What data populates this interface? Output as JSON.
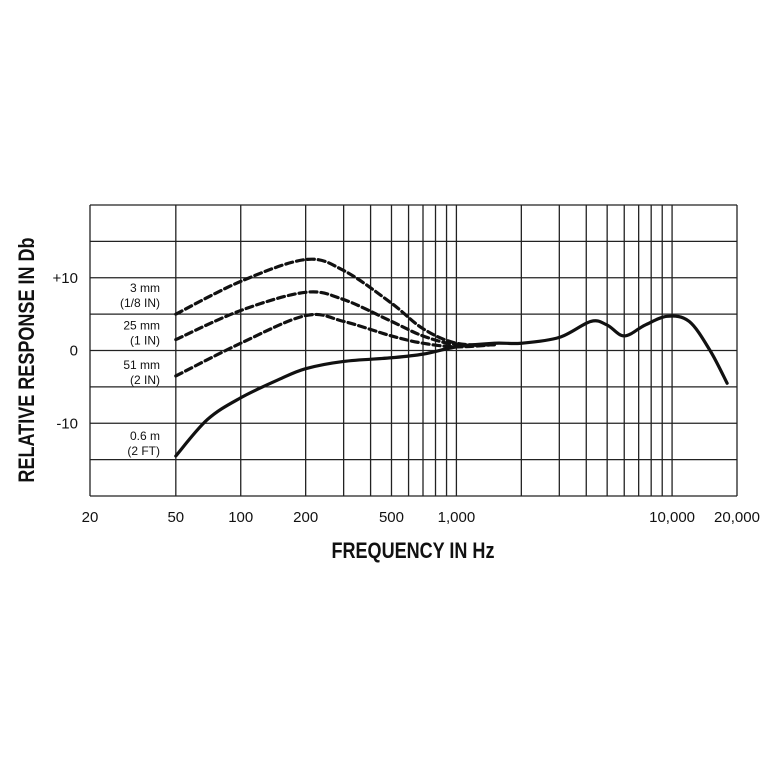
{
  "chart_data": {
    "type": "line",
    "xlabel": "FREQUENCY IN Hz",
    "ylabel": "RELATIVE RESPONSE IN Db",
    "xscale": "log",
    "xlim": [
      20,
      20000
    ],
    "ylim": [
      -20,
      20
    ],
    "xticks": [
      20,
      50,
      100,
      200,
      500,
      {
        "value": 1000,
        "label": "1,000"
      },
      {
        "value": 10000,
        "label": "10,000"
      },
      {
        "value": 20000,
        "label": "20,000"
      }
    ],
    "yticks": [
      {
        "value": 10,
        "label": "+10"
      },
      0,
      -10
    ],
    "xgrid": [
      20,
      50,
      100,
      200,
      300,
      400,
      500,
      600,
      700,
      800,
      900,
      1000,
      2000,
      3000,
      4000,
      5000,
      6000,
      7000,
      8000,
      9000,
      10000,
      20000
    ],
    "ygrid": [
      -20,
      -15,
      -10,
      -5,
      0,
      5,
      10,
      15,
      20
    ],
    "series": [
      {
        "name": [
          "3 mm",
          "(1/8 IN)"
        ],
        "color": "#111111",
        "dashed": true,
        "x": [
          50,
          100,
          200,
          300,
          500,
          700,
          1000,
          1500
        ],
        "values": [
          5,
          9.5,
          12.5,
          11,
          6.5,
          3,
          1,
          0.8
        ]
      },
      {
        "name": [
          "25 mm",
          "(1 IN)"
        ],
        "color": "#111111",
        "dashed": true,
        "x": [
          50,
          100,
          200,
          300,
          500,
          700,
          1000,
          1500
        ],
        "values": [
          1.5,
          5.5,
          8,
          7,
          4,
          2,
          0.8,
          0.8
        ]
      },
      {
        "name": [
          "51 mm",
          "(2 IN)"
        ],
        "color": "#111111",
        "dashed": true,
        "x": [
          50,
          100,
          200,
          300,
          500,
          700,
          1000,
          1500
        ],
        "values": [
          -3.5,
          1,
          4.8,
          4,
          2,
          1,
          0.5,
          0.8
        ]
      },
      {
        "name": [
          "0.6 m",
          "(2 FT)"
        ],
        "color": "#111111",
        "dashed": false,
        "x": [
          50,
          70,
          100,
          150,
          200,
          300,
          500,
          700,
          1000,
          1500,
          2000,
          3000,
          4200,
          5000,
          6000,
          7500,
          9500,
          12000,
          15000,
          18000
        ],
        "values": [
          -14.5,
          -9.5,
          -6.5,
          -4,
          -2.5,
          -1.5,
          -1,
          -0.5,
          0.5,
          1,
          1,
          1.8,
          4,
          3.5,
          2,
          3.5,
          4.7,
          4,
          0,
          -4.5
        ]
      }
    ]
  }
}
